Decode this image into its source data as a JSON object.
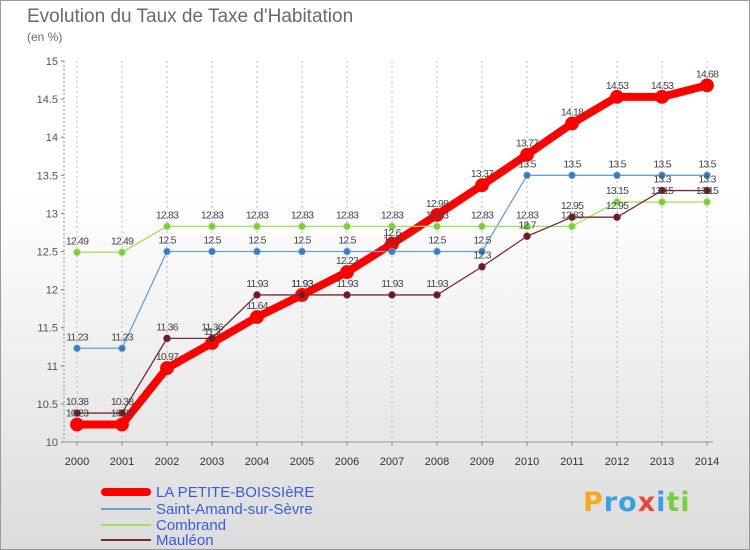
{
  "title": "Evolution du Taux de Taxe d'Habitation",
  "subtitle": "(en %)",
  "chart_data": {
    "type": "line",
    "title": "Evolution du Taux de Taxe d'Habitation",
    "ylabel": "(en %)",
    "xlabel": "",
    "ylim": [
      10,
      15
    ],
    "yticks": [
      "10",
      "10.5",
      "11",
      "11.5",
      "12",
      "12.5",
      "13",
      "13.5",
      "14",
      "14.5",
      "15"
    ],
    "categories": [
      "2000",
      "2001",
      "2002",
      "2003",
      "2004",
      "2005",
      "2006",
      "2007",
      "2008",
      "2009",
      "2010",
      "2011",
      "2012",
      "2013",
      "2014"
    ],
    "series": [
      {
        "name": "LA PETITE-BOISSIèRE",
        "color": "#ff0000",
        "marker_color": "#ff0000",
        "values": [
          10.23,
          10.23,
          10.97,
          11.3,
          11.64,
          11.93,
          12.23,
          12.6,
          12.98,
          13.37,
          13.77,
          14.18,
          14.53,
          14.53,
          14.68
        ],
        "labels": [
          "10.23",
          "10.23",
          "10.97",
          "11.3",
          "11.64",
          "11.93",
          "12.23",
          "12.6",
          "12.98",
          "13.37",
          "13.77",
          "14.18",
          "14.53",
          "14.53",
          "14.68"
        ]
      },
      {
        "name": "Saint-Amand-sur-Sèvre",
        "color": "#6a9fd0",
        "marker_color": "#3a7cc0",
        "values": [
          11.23,
          11.23,
          12.5,
          12.5,
          12.5,
          12.5,
          12.5,
          12.5,
          12.5,
          12.5,
          13.5,
          13.5,
          13.5,
          13.5,
          13.5
        ],
        "labels": [
          "11.23",
          "11.23",
          "12.5",
          "12.5",
          "12.5",
          "12.5",
          "12.5",
          "12.5",
          "12.5",
          "12.5",
          "13.5",
          "13.5",
          "13.5",
          "13.5",
          "13.5"
        ]
      },
      {
        "name": "Combrand",
        "color": "#9ee060",
        "marker_color": "#7ccd3c",
        "values": [
          12.49,
          12.49,
          12.83,
          12.83,
          12.83,
          12.83,
          12.83,
          12.83,
          12.83,
          12.83,
          12.83,
          12.83,
          13.15,
          13.15,
          13.15
        ],
        "labels": [
          "12.49",
          "12.49",
          "12.83",
          "12.83",
          "12.83",
          "12.83",
          "12.83",
          "12.83",
          "12.83",
          "12.83",
          "12.83",
          "12.83",
          "13.15",
          "13.15",
          "13.15"
        ]
      },
      {
        "name": "Mauléon",
        "color": "#7a2a36",
        "marker_color": "#6b1a28",
        "values": [
          10.38,
          10.38,
          11.36,
          11.36,
          11.93,
          11.93,
          11.93,
          11.93,
          11.93,
          12.3,
          12.7,
          12.95,
          12.95,
          13.3,
          13.3
        ],
        "labels": [
          "10.38",
          "10.38",
          "11.36",
          "11.36",
          "11.93",
          "11.93",
          "11.93",
          "11.93",
          "11.93",
          "12.3",
          "12.7",
          "12.95",
          "12.95",
          "13.3",
          "13.3"
        ]
      }
    ],
    "grid": "vertical dashed",
    "legend": "bottom-left"
  },
  "legend": {
    "items": [
      {
        "label": "LA PETITE-BOISSIèRE",
        "color": "#ff0000"
      },
      {
        "label": "Saint-Amand-sur-Sèvre",
        "color": "#6a9fd0"
      },
      {
        "label": "Combrand",
        "color": "#9ee060"
      },
      {
        "label": "Mauléon",
        "color": "#7a2a36"
      }
    ]
  },
  "logo": {
    "text": "Proxiti",
    "letters": [
      {
        "ch": "P",
        "color": "#f5a623"
      },
      {
        "ch": "r",
        "color": "#3aa0e0"
      },
      {
        "ch": "o",
        "color": "#3aa0e0"
      },
      {
        "ch": "x",
        "color": "#e8473a"
      },
      {
        "ch": "i",
        "color": "#3aa0e0"
      },
      {
        "ch": "t",
        "color": "#7ccd3c"
      },
      {
        "ch": "i",
        "color": "#7ccd3c"
      }
    ]
  }
}
